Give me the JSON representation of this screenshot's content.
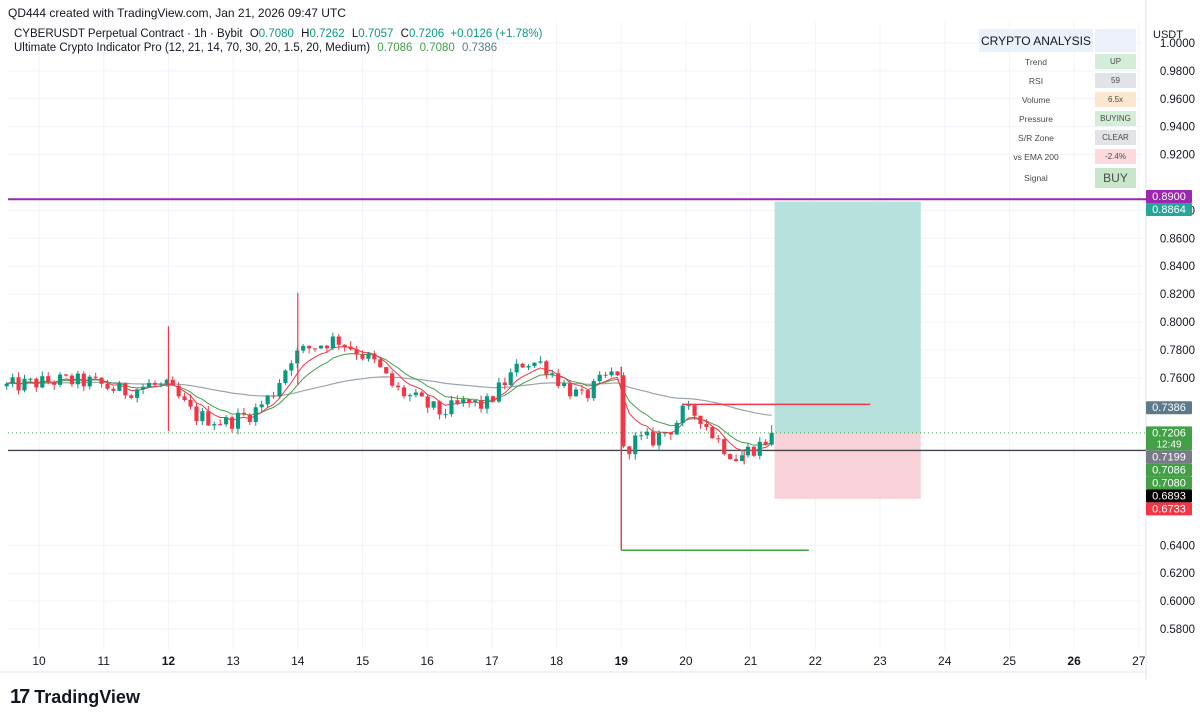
{
  "header": "QD444 created with TradingView.com, Jan 21, 2026 09:47 UTC",
  "legend": {
    "symbol": "CYBERUSDT Perpetual Contract · 1h · Bybit",
    "o_label": "O",
    "o": "0.7080",
    "h_label": "H",
    "h": "0.7262",
    "l_label": "L",
    "l": "0.7057",
    "c_label": "C",
    "c": "0.7206",
    "change": "+0.0126 (+1.78%)",
    "indicator": "Ultimate Crypto Indicator Pro (12, 21, 14, 70, 30, 20, 1.5, 20, Medium)",
    "ind_v1": "0.7086",
    "ind_v2": "0.7080",
    "ind_v3": "0.7386"
  },
  "axis_unit": "USDT",
  "info_table": {
    "title": "CRYPTO ANALYSIS",
    "rows": [
      {
        "label": "Trend",
        "value": "UP",
        "bg": "#d4edd8"
      },
      {
        "label": "RSI",
        "value": "59",
        "bg": "#e2e3e6"
      },
      {
        "label": "Volume",
        "value": "6.5x",
        "bg": "#fbe6cf"
      },
      {
        "label": "Pressure",
        "value": "BUYING",
        "bg": "#d4edd8"
      },
      {
        "label": "S/R Zone",
        "value": "CLEAR",
        "bg": "#e2e3e6"
      },
      {
        "label": "vs EMA 200",
        "value": "-2.4%",
        "bg": "#fbd9dc"
      }
    ],
    "signal": {
      "label": "Signal",
      "value": "BUY",
      "bg": "#c8e6c9"
    }
  },
  "logo": {
    "text": "TradingView"
  },
  "colors": {
    "up": "#089981",
    "down": "#f23645",
    "ema_fast": "#f23645",
    "ema_slow": "#43a047",
    "ema200": "#9aa4ad",
    "purple": "#9c27b0",
    "target_zone": "#b2dfdb",
    "stop_zone": "#f8d0d6"
  },
  "chart_data": {
    "type": "candlestick",
    "x_ticks": [
      "10",
      "11",
      "12",
      "13",
      "14",
      "15",
      "16",
      "17",
      "18",
      "19",
      "20",
      "21",
      "22",
      "23",
      "24",
      "25",
      "26",
      "27"
    ],
    "bold_x_ticks": [
      "12",
      "19",
      "26"
    ],
    "y_ticks": [
      "1.0000",
      "0.9800",
      "0.9600",
      "0.9400",
      "0.9200",
      "0.8800",
      "0.8600",
      "0.8400",
      "0.8200",
      "0.8000",
      "0.7800",
      "0.7600",
      "0.6400",
      "0.6200",
      "0.6000",
      "0.5800"
    ],
    "ylim": [
      0.565,
      1.015
    ],
    "price_keypoints": [
      [
        9.5,
        0.754
      ],
      [
        10.3,
        0.758
      ],
      [
        10.8,
        0.757
      ],
      [
        11.3,
        0.75
      ],
      [
        11.7,
        0.755
      ],
      [
        12.0,
        0.753
      ],
      [
        12.4,
        0.733
      ],
      [
        12.9,
        0.728
      ],
      [
        13.3,
        0.735
      ],
      [
        13.6,
        0.748
      ],
      [
        13.9,
        0.775
      ],
      [
        14.2,
        0.782
      ],
      [
        14.6,
        0.788
      ],
      [
        14.9,
        0.78
      ],
      [
        15.2,
        0.77
      ],
      [
        15.5,
        0.752
      ],
      [
        15.8,
        0.745
      ],
      [
        16.2,
        0.735
      ],
      [
        16.6,
        0.742
      ],
      [
        16.9,
        0.74
      ],
      [
        17.2,
        0.757
      ],
      [
        17.5,
        0.772
      ],
      [
        17.8,
        0.77
      ],
      [
        18.1,
        0.755
      ],
      [
        18.4,
        0.745
      ],
      [
        18.7,
        0.758
      ],
      [
        18.95,
        0.765
      ],
      [
        19.0,
        0.705
      ],
      [
        19.2,
        0.715
      ],
      [
        19.5,
        0.716
      ],
      [
        19.8,
        0.725
      ],
      [
        19.95,
        0.735
      ],
      [
        20.2,
        0.734
      ],
      [
        20.4,
        0.72
      ],
      [
        20.6,
        0.71
      ],
      [
        20.8,
        0.702
      ],
      [
        20.95,
        0.708
      ],
      [
        21.15,
        0.712
      ],
      [
        21.35,
        0.7206
      ]
    ],
    "spikes": [
      {
        "x": 12.0,
        "high": 0.797,
        "low": 0.722
      },
      {
        "x": 14.0,
        "high": 0.821,
        "low": 0.755
      },
      {
        "x": 19.0,
        "high": 0.768,
        "low": 0.637
      },
      {
        "x": 20.9,
        "high": 0.708,
        "low": 0.698
      }
    ],
    "last_price": 0.7206,
    "horizontal_lines": [
      {
        "name": "purple-line",
        "y": 0.888,
        "color": "#9c27b0"
      },
      {
        "name": "support-line",
        "y": 0.708,
        "color": "#434651"
      }
    ],
    "rays": [
      {
        "name": "resistance-ray",
        "y": 0.741,
        "x0": 19.95,
        "x1": 22.85,
        "color": "#f23645"
      },
      {
        "name": "low-ray",
        "y": 0.6365,
        "x0": 19.0,
        "x1": 21.9,
        "color": "#43a047"
      }
    ],
    "position": {
      "entry": 0.7206,
      "target": 0.8864,
      "stop": 0.6733,
      "x0": 21.37,
      "x1": 23.63
    },
    "price_labels": [
      {
        "text": "0.8900",
        "y": 0.89,
        "bg": "#9c27b0",
        "fg": "#ffffff"
      },
      {
        "text": "0.8864",
        "y": 0.8864,
        "bg": "#26a69a",
        "fg": "#ffffff"
      },
      {
        "text": "0.7386",
        "y": 0.7386,
        "bg": "#5d7a8c",
        "fg": "#ffffff"
      },
      {
        "text": "0.7206",
        "y": 0.7206,
        "bg": "#43a047",
        "fg": "#ffffff",
        "sub": "12:49"
      },
      {
        "text": "0.7199",
        "y": 0.7199,
        "bg": "#787b86",
        "fg": "#ffffff"
      },
      {
        "text": "0.7086",
        "y": 0.7086,
        "bg": "#43a047",
        "fg": "#ffffff"
      },
      {
        "text": "0.7080",
        "y": 0.708,
        "bg": "#43a047",
        "fg": "#ffffff"
      },
      {
        "text": "0.6893",
        "y": 0.6893,
        "bg": "#000000",
        "fg": "#ffffff"
      },
      {
        "text": "0.6733",
        "y": 0.6733,
        "bg": "#f23645",
        "fg": "#ffffff"
      }
    ]
  }
}
